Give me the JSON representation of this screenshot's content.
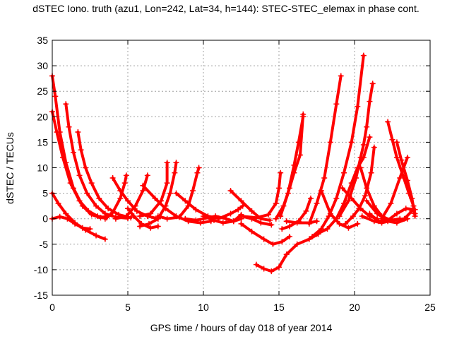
{
  "chart_data": {
    "type": "scatter",
    "title": "dSTEC Iono. truth (azu1, Lon=242, Lat=34, h=144): STEC-STEC_elemax in phase cont.",
    "xlabel": "GPS time / hours of day 018 of year 2014",
    "ylabel": "dSTEC  / TECUs",
    "xlim": [
      0,
      25
    ],
    "ylim": [
      -15,
      35
    ],
    "xticks": [
      "0",
      "5",
      "10",
      "15",
      "20",
      "25"
    ],
    "yticks": [
      "-15",
      "-10",
      "-5",
      "0",
      "5",
      "10",
      "15",
      "20",
      "25",
      "30",
      "35"
    ],
    "grid": true,
    "marker": "plus",
    "color": "#ff0000",
    "series": [
      {
        "points": [
          [
            0.0,
            28.0
          ],
          [
            0.2,
            24
          ],
          [
            0.5,
            17
          ],
          [
            0.9,
            11
          ],
          [
            1.4,
            6
          ],
          [
            2.0,
            2.5
          ],
          [
            2.6,
            0.8
          ],
          [
            3.2,
            0.2
          ],
          [
            3.6,
            0.5
          ]
        ]
      },
      {
        "points": [
          [
            0.0,
            21.0
          ],
          [
            0.3,
            17
          ],
          [
            0.7,
            12
          ],
          [
            1.2,
            7
          ],
          [
            1.8,
            3.5
          ],
          [
            2.4,
            1.5
          ],
          [
            3.0,
            0.5
          ],
          [
            3.6,
            0.2
          ]
        ]
      },
      {
        "points": [
          [
            0.0,
            5.0
          ],
          [
            0.4,
            3.0
          ],
          [
            0.9,
            1.0
          ],
          [
            1.5,
            -0.8
          ],
          [
            2.2,
            -2.2
          ],
          [
            2.9,
            -3.3
          ],
          [
            3.5,
            -4.0
          ]
        ]
      },
      {
        "points": [
          [
            0.0,
            0.0
          ],
          [
            0.5,
            0.4
          ],
          [
            1.0,
            0.0
          ],
          [
            1.5,
            -1.0
          ],
          [
            2.0,
            -1.8
          ],
          [
            2.5,
            -2.0
          ]
        ]
      },
      {
        "points": [
          [
            0.9,
            22.5
          ],
          [
            1.1,
            18
          ],
          [
            1.4,
            13
          ],
          [
            1.8,
            8.5
          ],
          [
            2.3,
            5
          ],
          [
            2.9,
            2.5
          ],
          [
            3.5,
            1.0
          ],
          [
            4.2,
            0.3
          ],
          [
            5.0,
            0.1
          ]
        ]
      },
      {
        "points": [
          [
            1.7,
            17.0
          ],
          [
            1.9,
            13.5
          ],
          [
            2.2,
            10
          ],
          [
            2.6,
            7
          ],
          [
            3.1,
            4
          ],
          [
            3.7,
            2
          ],
          [
            4.4,
            0.8
          ],
          [
            5.2,
            0.2
          ]
        ]
      },
      {
        "points": [
          [
            3.5,
            0.0
          ],
          [
            4.0,
            1.2
          ],
          [
            4.5,
            4
          ],
          [
            4.8,
            7
          ],
          [
            4.9,
            8.5
          ]
        ]
      },
      {
        "points": [
          [
            4.0,
            8.0
          ],
          [
            4.5,
            5.5
          ],
          [
            5.0,
            3.5
          ],
          [
            5.6,
            1.5
          ],
          [
            6.3,
            0.5
          ],
          [
            7.0,
            0.0
          ]
        ]
      },
      {
        "points": [
          [
            4.2,
            0.0
          ],
          [
            4.9,
            0.5
          ],
          [
            5.5,
            2.5
          ],
          [
            6.0,
            5.5
          ],
          [
            6.3,
            8.5
          ]
        ]
      },
      {
        "points": [
          [
            5.0,
            2.0
          ],
          [
            5.4,
            0.5
          ],
          [
            5.9,
            -1.0
          ],
          [
            6.5,
            -1.8
          ],
          [
            7.0,
            -1.5
          ]
        ]
      },
      {
        "points": [
          [
            5.8,
            -1.5
          ],
          [
            6.4,
            -1.0
          ],
          [
            7.0,
            0.0
          ],
          [
            7.5,
            2.5
          ],
          [
            7.8,
            5
          ],
          [
            8.1,
            9
          ],
          [
            8.2,
            11
          ]
        ]
      },
      {
        "points": [
          [
            5.8,
            0.5
          ],
          [
            6.5,
            1.0
          ],
          [
            7.2,
            3.5
          ],
          [
            7.6,
            7.0
          ],
          [
            7.6,
            11.0
          ]
        ]
      },
      {
        "points": [
          [
            6.0,
            6.5
          ],
          [
            6.8,
            4.0
          ],
          [
            7.5,
            2.0
          ],
          [
            8.2,
            0.5
          ],
          [
            9.0,
            -0.5
          ],
          [
            9.8,
            -0.8
          ],
          [
            10.5,
            -0.5
          ]
        ]
      },
      {
        "points": [
          [
            7.0,
            0.5
          ],
          [
            7.6,
            0.0
          ],
          [
            8.4,
            0.3
          ],
          [
            9.0,
            2.5
          ],
          [
            9.3,
            5.5
          ],
          [
            9.6,
            9.0
          ],
          [
            9.7,
            10.0
          ]
        ]
      },
      {
        "points": [
          [
            8.2,
            5.0
          ],
          [
            8.8,
            3.5
          ],
          [
            9.5,
            1.8
          ],
          [
            10.3,
            0.5
          ],
          [
            11.0,
            0.1
          ]
        ]
      },
      {
        "points": [
          [
            8.8,
            0.0
          ],
          [
            9.5,
            -0.3
          ],
          [
            10.0,
            0.0
          ],
          [
            10.8,
            0.5
          ],
          [
            11.5,
            0.0
          ],
          [
            12.0,
            -0.5
          ],
          [
            12.5,
            0.0
          ]
        ]
      },
      {
        "points": [
          [
            10.0,
            0.5
          ],
          [
            10.7,
            -0.3
          ],
          [
            11.3,
            -0.8
          ],
          [
            12.0,
            -0.5
          ],
          [
            12.5,
            0.8
          ]
        ]
      },
      {
        "points": [
          [
            11.0,
            0.0
          ],
          [
            11.8,
            1.0
          ],
          [
            12.3,
            1.8
          ],
          [
            12.6,
            2.5
          ]
        ]
      },
      {
        "points": [
          [
            11.8,
            5.5
          ],
          [
            12.5,
            3.5
          ],
          [
            13.2,
            1.5
          ],
          [
            13.8,
            0.0
          ],
          [
            14.4,
            -0.3
          ]
        ]
      },
      {
        "points": [
          [
            12.5,
            0.5
          ],
          [
            13.2,
            0.0
          ],
          [
            13.8,
            -0.8
          ],
          [
            14.5,
            -1.2
          ]
        ]
      },
      {
        "points": [
          [
            12.5,
            -1.0
          ],
          [
            13.2,
            -2.5
          ],
          [
            14.0,
            -4.0
          ],
          [
            14.6,
            -5.0
          ],
          [
            15.2,
            -4.5
          ],
          [
            15.7,
            -3.5
          ]
        ]
      },
      {
        "points": [
          [
            12.5,
            0.5
          ],
          [
            13.5,
            0.2
          ],
          [
            14.3,
            0.8
          ],
          [
            14.8,
            3.0
          ],
          [
            15.0,
            6.0
          ],
          [
            15.1,
            9.0
          ]
        ]
      },
      {
        "points": [
          [
            13.5,
            -9.0
          ],
          [
            14.0,
            -9.8
          ],
          [
            14.5,
            -10.3
          ],
          [
            15.0,
            -9.5
          ],
          [
            15.5,
            -7.0
          ],
          [
            16.2,
            -5.0
          ],
          [
            17.0,
            -4.0
          ],
          [
            17.6,
            -3.0
          ]
        ]
      },
      {
        "points": [
          [
            14.8,
            0.0
          ],
          [
            15.3,
            2.5
          ],
          [
            15.7,
            6.0
          ],
          [
            16.0,
            9.0
          ],
          [
            16.4,
            12.5
          ],
          [
            16.6,
            20.5
          ]
        ]
      },
      {
        "points": [
          [
            15.1,
            0.5
          ],
          [
            15.6,
            5.0
          ],
          [
            16.0,
            10.5
          ],
          [
            16.3,
            15.0
          ],
          [
            16.6,
            20.0
          ]
        ]
      },
      {
        "points": [
          [
            15.2,
            -2.0
          ],
          [
            15.7,
            -1.5
          ],
          [
            16.3,
            -0.5
          ],
          [
            16.8,
            1.5
          ],
          [
            17.1,
            4.0
          ]
        ]
      },
      {
        "points": [
          [
            15.5,
            -0.5
          ],
          [
            16.2,
            -0.8
          ],
          [
            17.0,
            -0.8
          ],
          [
            17.5,
            -0.5
          ]
        ]
      },
      {
        "points": [
          [
            17.0,
            -1.0
          ],
          [
            17.5,
            3.0
          ],
          [
            18.0,
            8.0
          ],
          [
            18.4,
            15.0
          ],
          [
            18.8,
            22.5
          ],
          [
            19.1,
            28.0
          ]
        ]
      },
      {
        "points": [
          [
            17.2,
            -3.5
          ],
          [
            17.8,
            -2.0
          ],
          [
            18.3,
            0.5
          ],
          [
            18.8,
            4.0
          ],
          [
            19.3,
            9.0
          ],
          [
            19.8,
            15.0
          ],
          [
            20.2,
            22.0
          ],
          [
            20.6,
            32.0
          ]
        ]
      },
      {
        "points": [
          [
            17.5,
            -3.0
          ],
          [
            18.2,
            -2.0
          ],
          [
            18.8,
            0.0
          ],
          [
            19.3,
            3.0
          ],
          [
            19.8,
            7.0
          ],
          [
            20.2,
            10.0
          ],
          [
            20.6,
            12.0
          ],
          [
            21.0,
            16.0
          ]
        ]
      },
      {
        "points": [
          [
            17.8,
            5.5
          ],
          [
            18.4,
            1.0
          ],
          [
            19.0,
            -1.0
          ],
          [
            19.6,
            -1.8
          ],
          [
            20.2,
            -1.0
          ]
        ]
      },
      {
        "points": [
          [
            19.0,
            0.5
          ],
          [
            19.6,
            3.5
          ],
          [
            20.1,
            8.0
          ],
          [
            20.4,
            12.0
          ],
          [
            20.6,
            14.5
          ],
          [
            20.8,
            18.0
          ],
          [
            21.0,
            23.0
          ],
          [
            21.2,
            26.5
          ]
        ]
      },
      {
        "points": [
          [
            19.2,
            6.0
          ],
          [
            19.8,
            4.0
          ],
          [
            20.4,
            2.0
          ],
          [
            21.0,
            0.5
          ],
          [
            21.5,
            0.0
          ]
        ]
      },
      {
        "points": [
          [
            19.4,
            -1.0
          ],
          [
            19.9,
            0.5
          ],
          [
            20.3,
            2.0
          ],
          [
            20.7,
            4.5
          ],
          [
            21.1,
            9.0
          ],
          [
            21.3,
            14.0
          ]
        ]
      },
      {
        "points": [
          [
            20.4,
            10.0
          ],
          [
            20.8,
            6.0
          ],
          [
            21.3,
            2.5
          ],
          [
            21.8,
            0.5
          ],
          [
            22.4,
            -0.3
          ],
          [
            23.0,
            0.0
          ]
        ]
      },
      {
        "points": [
          [
            20.5,
            0.5
          ],
          [
            21.3,
            -0.5
          ],
          [
            21.8,
            -0.8
          ],
          [
            22.5,
            -0.3
          ],
          [
            23.3,
            0.0
          ],
          [
            23.8,
            1.5
          ]
        ]
      },
      {
        "points": [
          [
            20.8,
            3.5
          ],
          [
            21.5,
            1.0
          ],
          [
            22.2,
            -0.5
          ],
          [
            22.8,
            -0.8
          ],
          [
            23.5,
            0.0
          ]
        ]
      },
      {
        "points": [
          [
            21.8,
            0.0
          ],
          [
            22.4,
            3.0
          ],
          [
            23.0,
            8.0
          ],
          [
            23.5,
            12.0
          ]
        ]
      },
      {
        "points": [
          [
            22.2,
            19.0
          ],
          [
            22.5,
            15.5
          ],
          [
            22.8,
            12.0
          ],
          [
            23.2,
            8.5
          ],
          [
            23.6,
            5.0
          ],
          [
            23.9,
            2.5
          ],
          [
            24.0,
            1.0
          ]
        ]
      },
      {
        "points": [
          [
            22.8,
            15.0
          ],
          [
            23.1,
            11.5
          ],
          [
            23.5,
            7.5
          ],
          [
            23.8,
            4.0
          ],
          [
            24.0,
            0.5
          ]
        ]
      },
      {
        "points": [
          [
            21.0,
            1.0
          ],
          [
            21.6,
            -0.5
          ],
          [
            22.2,
            -0.3
          ],
          [
            22.8,
            1.0
          ],
          [
            23.4,
            2.0
          ],
          [
            24.0,
            1.8
          ]
        ]
      }
    ]
  }
}
